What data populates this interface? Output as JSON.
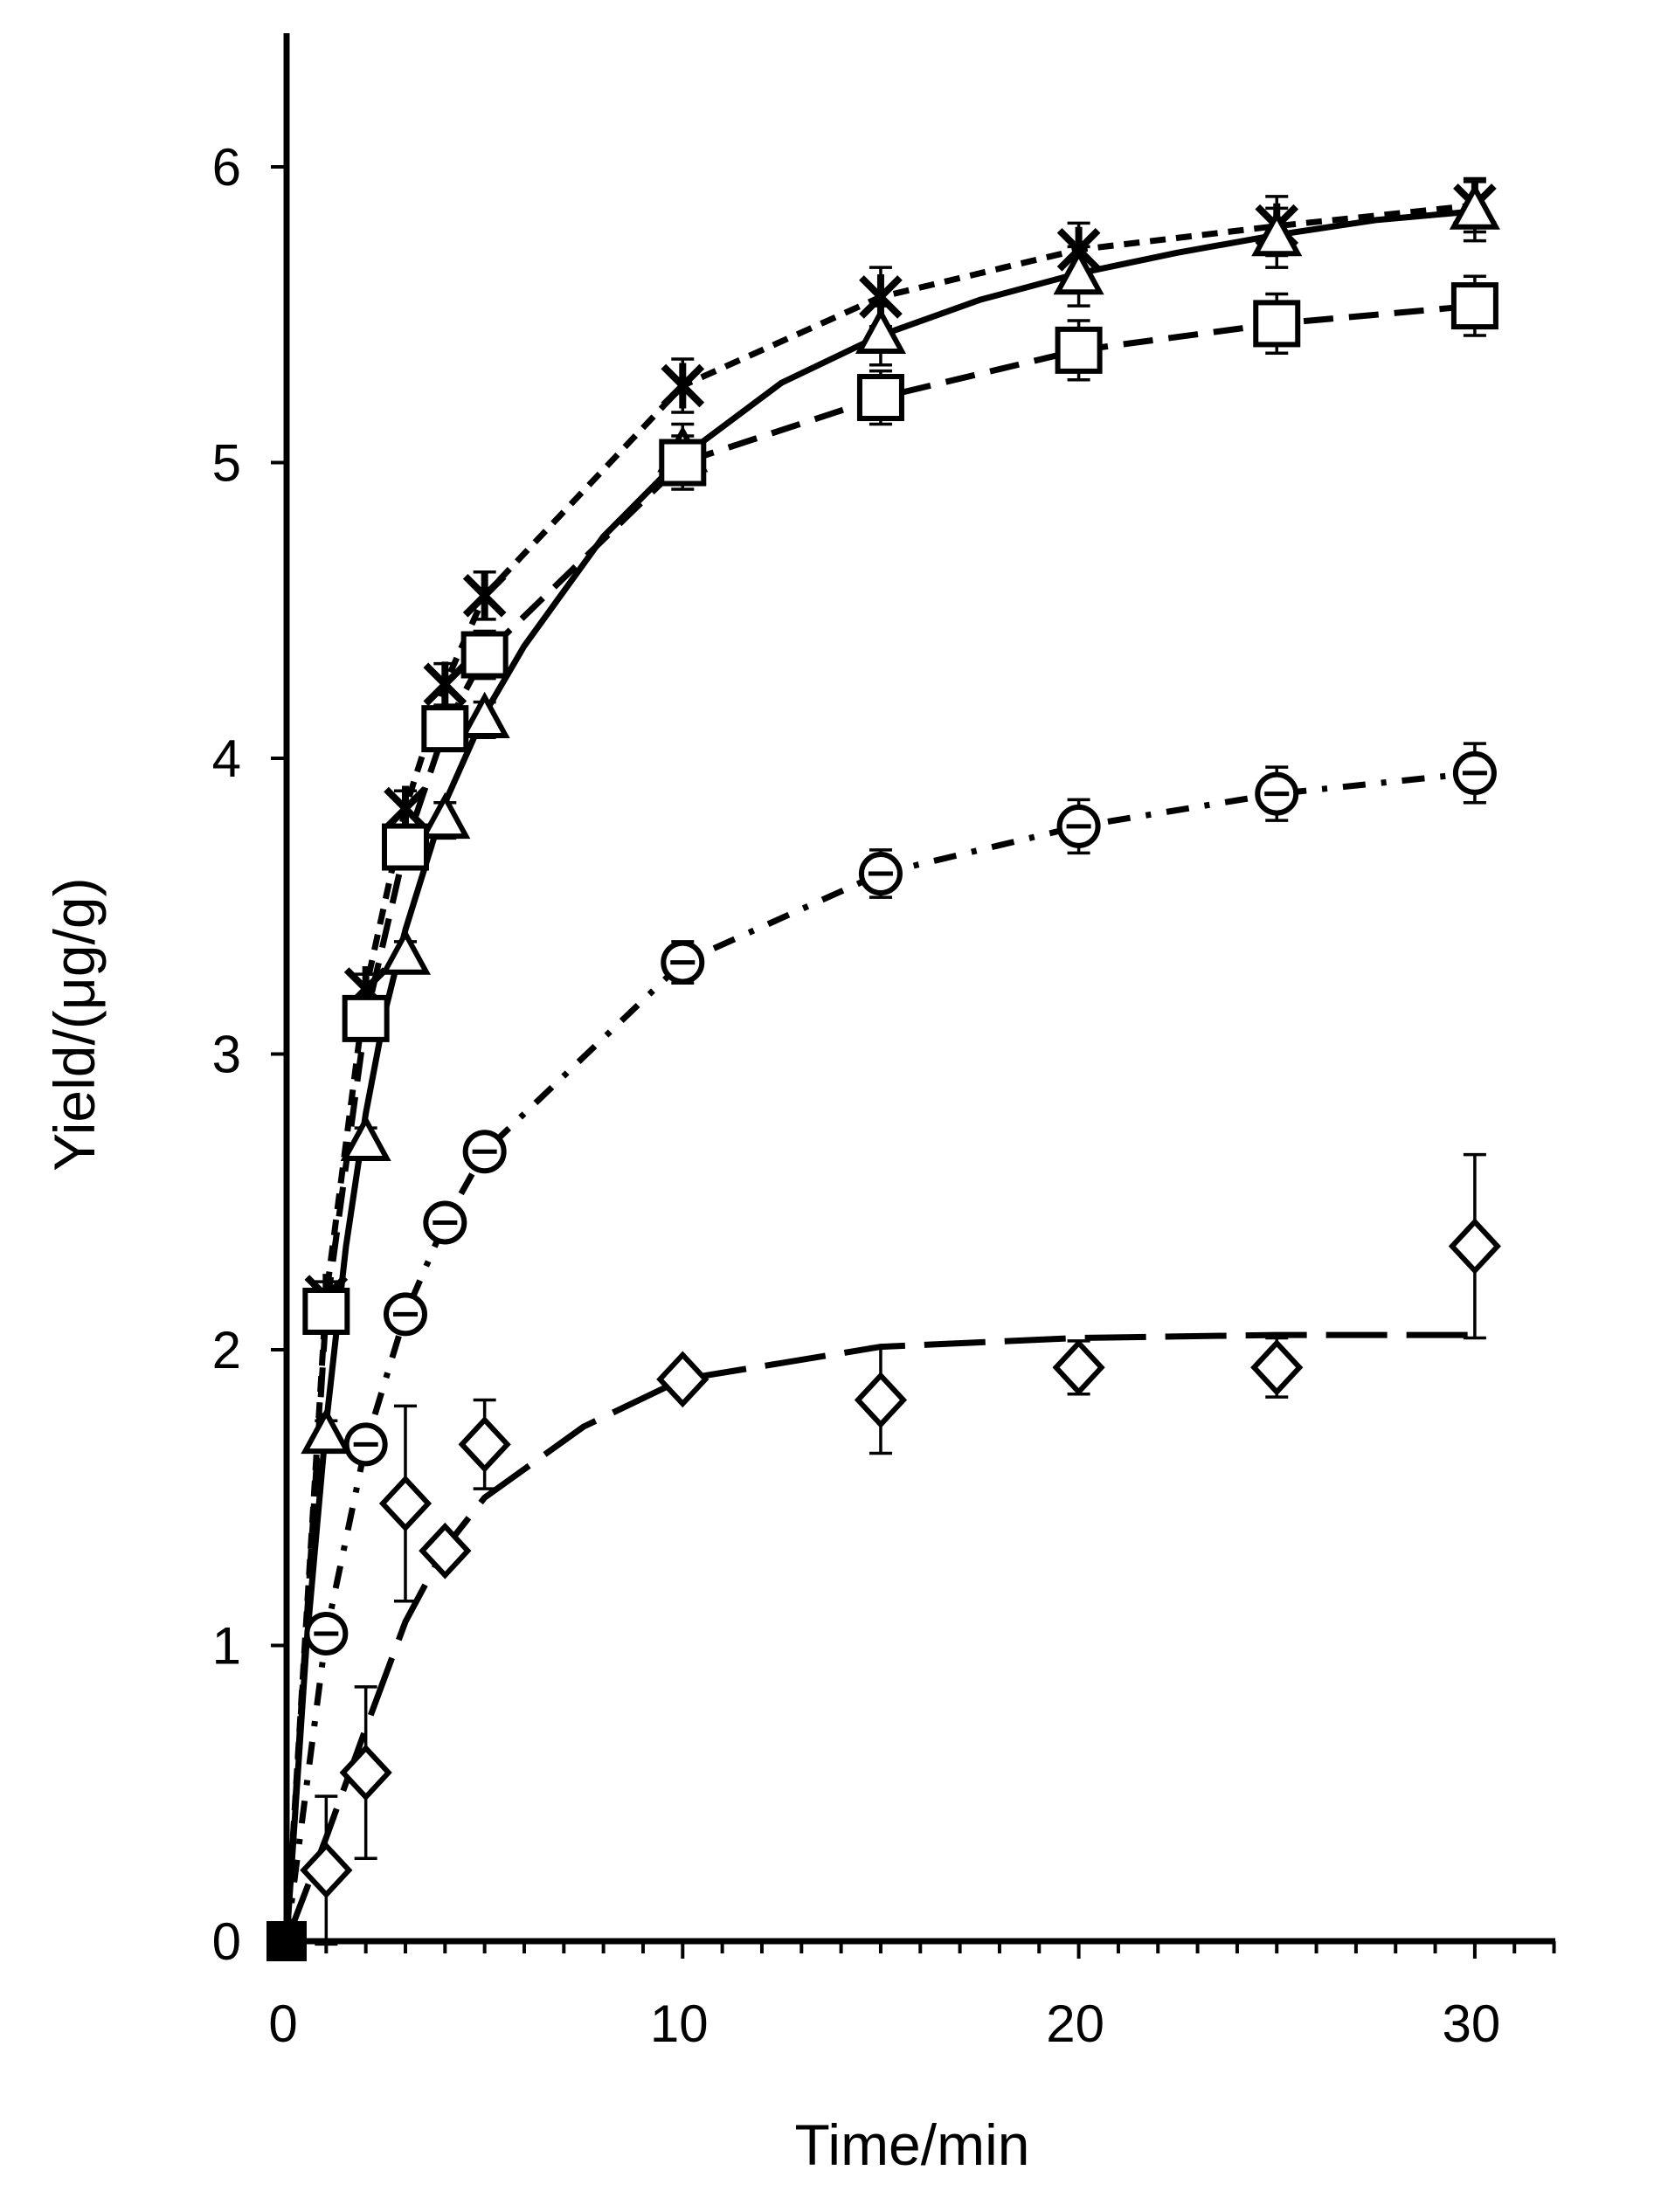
{
  "chart_data": {
    "type": "scatter",
    "title": "",
    "xlabel": "Time/min",
    "ylabel": "Yield/(μg/g)",
    "xlim": [
      0,
      32
    ],
    "ylim": [
      0,
      6.5
    ],
    "x_ticks": [
      0,
      10,
      20,
      30
    ],
    "x_tick_labels": [
      "0",
      "10",
      "20",
      "30"
    ],
    "y_ticks": [
      0,
      1,
      2,
      3,
      4,
      5,
      6
    ],
    "y_tick_labels": [
      "0",
      "1",
      "2",
      "3",
      "4",
      "5",
      "6"
    ],
    "x_minor_step": 1,
    "grid": false,
    "legend": "none",
    "series": [
      {
        "marker": "asterisk",
        "line": "short-dash",
        "x": [
          0,
          1,
          2,
          3,
          4,
          5,
          10,
          15,
          20,
          25,
          30
        ],
        "y": [
          0,
          2.18,
          3.22,
          3.83,
          4.25,
          4.55,
          5.26,
          5.56,
          5.72,
          5.8,
          5.87
        ],
        "err": [
          0,
          0.05,
          0.05,
          0.06,
          0.07,
          0.08,
          0.09,
          0.1,
          0.09,
          0.1,
          0.09
        ],
        "fit_x": [
          0,
          1,
          2,
          3,
          4,
          5,
          10,
          15,
          20,
          25,
          30
        ],
        "fit_y": [
          0,
          2.18,
          3.22,
          3.83,
          4.25,
          4.55,
          5.26,
          5.56,
          5.72,
          5.8,
          5.87
        ]
      },
      {
        "marker": "triangle",
        "line": "solid",
        "x": [
          0,
          1,
          2,
          3,
          4,
          5,
          10,
          15,
          20,
          25,
          30
        ],
        "y": [
          0,
          1.71,
          2.7,
          3.33,
          3.79,
          4.13,
          5.03,
          5.43,
          5.63,
          5.76,
          5.85
        ],
        "err": [
          0,
          0.05,
          0.05,
          0.05,
          0.06,
          0.06,
          0.1,
          0.1,
          0.1,
          0.1,
          0.1
        ],
        "fit_x": [
          0,
          0.5,
          1,
          1.5,
          2,
          2.5,
          3,
          4,
          5,
          6,
          8,
          10,
          12.5,
          15,
          17.5,
          20,
          22.5,
          25,
          27.5,
          30
        ],
        "fit_y": [
          0,
          1.0,
          1.75,
          2.35,
          2.8,
          3.15,
          3.42,
          3.85,
          4.15,
          4.38,
          4.75,
          5.02,
          5.27,
          5.43,
          5.55,
          5.64,
          5.71,
          5.77,
          5.82,
          5.85
        ]
      },
      {
        "marker": "square",
        "line": "medium-dash",
        "x": [
          0,
          1,
          2,
          3,
          4,
          5,
          10,
          15,
          20,
          25,
          30
        ],
        "y": [
          0,
          2.13,
          3.12,
          3.7,
          4.1,
          4.35,
          5.0,
          5.22,
          5.38,
          5.47,
          5.53
        ],
        "err": [
          0,
          0.05,
          0.05,
          0.06,
          0.07,
          0.08,
          0.09,
          0.09,
          0.1,
          0.1,
          0.1
        ],
        "fit_x": [
          0,
          1,
          2,
          3,
          4,
          5,
          10,
          15,
          20,
          25,
          30
        ],
        "fit_y": [
          0,
          2.13,
          3.12,
          3.7,
          4.1,
          4.35,
          5.0,
          5.22,
          5.38,
          5.47,
          5.53
        ]
      },
      {
        "marker": "circle",
        "line": "dash-dot",
        "x": [
          0,
          1,
          2,
          3,
          4,
          5,
          10,
          15,
          20,
          25,
          30
        ],
        "y": [
          0,
          1.04,
          1.68,
          2.12,
          2.43,
          2.67,
          3.31,
          3.61,
          3.77,
          3.88,
          3.95
        ],
        "err": [
          0,
          0.04,
          0.04,
          0.05,
          0.05,
          0.05,
          0.07,
          0.08,
          0.09,
          0.09,
          0.1
        ],
        "fit_x": [
          0,
          1,
          2,
          3,
          4,
          5,
          10,
          15,
          20,
          25,
          30
        ],
        "fit_y": [
          0,
          1.04,
          1.68,
          2.12,
          2.43,
          2.67,
          3.31,
          3.61,
          3.77,
          3.88,
          3.95
        ]
      },
      {
        "marker": "diamond",
        "line": "long-dash",
        "x": [
          0,
          1,
          2,
          3,
          4,
          5,
          10,
          15,
          20,
          25,
          30
        ],
        "y": [
          0,
          0.24,
          0.57,
          1.48,
          1.32,
          1.68,
          1.9,
          1.83,
          1.94,
          1.94,
          2.35
        ],
        "err": [
          0,
          0.25,
          0.29,
          0.33,
          0.04,
          0.15,
          0.04,
          0.18,
          0.09,
          0.1,
          0.31
        ],
        "fit_x": [
          0,
          1,
          2,
          3,
          4,
          5,
          7.5,
          10,
          15,
          20,
          25,
          30
        ],
        "fit_y": [
          0,
          0.35,
          0.72,
          1.08,
          1.33,
          1.5,
          1.74,
          1.9,
          2.01,
          2.04,
          2.05,
          2.05
        ]
      }
    ]
  }
}
